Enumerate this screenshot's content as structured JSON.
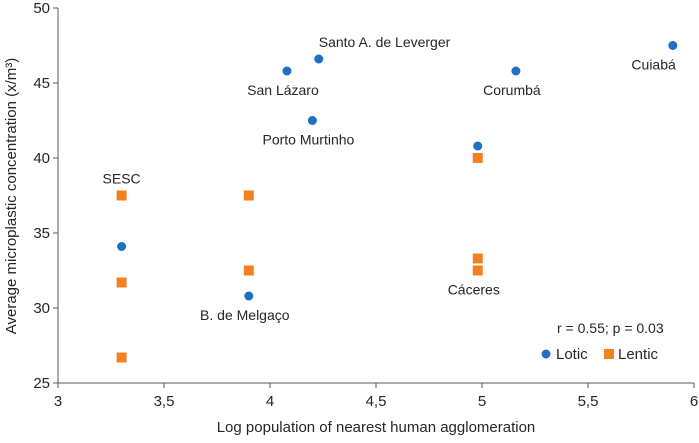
{
  "chart_data": {
    "type": "scatter",
    "title": "",
    "xlabel": "Log population of nearest human agglomeration",
    "ylabel": "Average microplastic concentration (x/m³)",
    "xlim": [
      3,
      6
    ],
    "ylim": [
      25,
      50
    ],
    "x_ticks": [
      "3",
      "3,5",
      "4",
      "4,5",
      "5",
      "5,5",
      "6"
    ],
    "y_ticks": [
      "25",
      "30",
      "35",
      "40",
      "45",
      "50"
    ],
    "grid": false,
    "legend_position": "bottom-right",
    "annotation": "r = 0.55; p = 0.03",
    "series": [
      {
        "name": "Lotic",
        "marker": "circle",
        "color": "#1f6fc5",
        "points": [
          {
            "x": 3.3,
            "y": 34.1
          },
          {
            "x": 3.9,
            "y": 30.8
          },
          {
            "x": 4.08,
            "y": 45.8
          },
          {
            "x": 4.2,
            "y": 42.5
          },
          {
            "x": 4.23,
            "y": 46.6
          },
          {
            "x": 4.98,
            "y": 40.8
          },
          {
            "x": 5.16,
            "y": 45.8
          },
          {
            "x": 5.9,
            "y": 47.5
          }
        ]
      },
      {
        "name": "Lentic",
        "marker": "square",
        "color": "#f4811f",
        "points": [
          {
            "x": 3.3,
            "y": 37.5
          },
          {
            "x": 3.3,
            "y": 31.7
          },
          {
            "x": 3.3,
            "y": 26.7
          },
          {
            "x": 3.9,
            "y": 37.5
          },
          {
            "x": 3.9,
            "y": 32.5
          },
          {
            "x": 4.98,
            "y": 40.0
          },
          {
            "x": 4.98,
            "y": 33.3
          },
          {
            "x": 4.98,
            "y": 32.5
          }
        ]
      }
    ],
    "point_labels": [
      {
        "text": "SESC",
        "x": 3.3,
        "y": 37.5,
        "pos": "above"
      },
      {
        "text": "B. de Melgaço",
        "x": 3.9,
        "y": 30.8,
        "pos": "below"
      },
      {
        "text": "San Lázaro",
        "x": 4.08,
        "y": 45.8,
        "pos": "below"
      },
      {
        "text": "Porto Murtinho",
        "x": 4.2,
        "y": 42.5,
        "pos": "below"
      },
      {
        "text": "Santo A. de Leverger",
        "x": 4.23,
        "y": 46.6,
        "pos": "above-right"
      },
      {
        "text": "Cáceres",
        "x": 4.98,
        "y": 32.5,
        "pos": "below"
      },
      {
        "text": "Corumbá",
        "x": 5.16,
        "y": 45.8,
        "pos": "below"
      },
      {
        "text": "Cuiabá",
        "x": 5.9,
        "y": 47.5,
        "pos": "below-left"
      }
    ]
  }
}
